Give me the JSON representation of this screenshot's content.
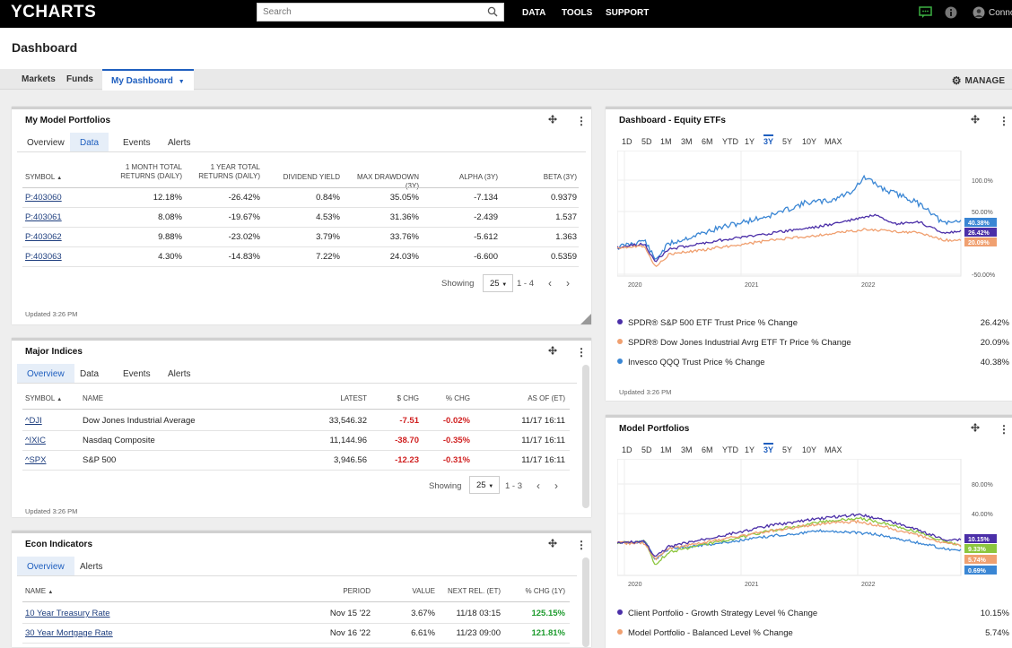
{
  "topbar": {
    "logo": "YCHARTS",
    "search_placeholder": "Search",
    "nav": [
      "DATA",
      "TOOLS",
      "SUPPORT"
    ],
    "user": "Conno"
  },
  "dashboard": {
    "title": "Dashboard",
    "tabs": [
      "Markets",
      "Funds"
    ],
    "active_tab": "My Dashboard",
    "manage": "MANAGE"
  },
  "model_portfolios": {
    "title": "My Model Portfolios",
    "tabs": [
      "Overview",
      "Data",
      "Events",
      "Alerts"
    ],
    "headers": [
      "SYMBOL",
      "1 MONTH TOTAL",
      "RETURNS (DAILY)",
      "1 YEAR TOTAL",
      "RETURNS (DAILY)",
      "DIVIDEND YIELD",
      "MAX DRAWDOWN (3Y)",
      "ALPHA (3Y)",
      "BETA (3Y)"
    ],
    "rows": [
      [
        "P:403060",
        "12.18%",
        "-26.42%",
        "0.84%",
        "35.05%",
        "-7.134",
        "0.9379"
      ],
      [
        "P:403061",
        "8.08%",
        "-19.67%",
        "4.53%",
        "31.36%",
        "-2.439",
        "1.537"
      ],
      [
        "P:403062",
        "9.88%",
        "-23.02%",
        "3.79%",
        "33.76%",
        "-5.612",
        "1.363"
      ],
      [
        "P:403063",
        "4.30%",
        "-14.83%",
        "7.22%",
        "24.03%",
        "-6.600",
        "0.5359"
      ]
    ],
    "showing": "Showing",
    "per_page": "25",
    "range": "1 - 4",
    "updated": "Updated 3:26 PM"
  },
  "major_indices": {
    "title": "Major Indices",
    "tabs": [
      "Overview",
      "Data",
      "Events",
      "Alerts"
    ],
    "headers": [
      "SYMBOL",
      "NAME",
      "LATEST",
      "$ CHG",
      "% CHG",
      "AS OF (ET)"
    ],
    "rows": [
      [
        "^DJI",
        "Dow Jones Industrial Average",
        "33,546.32",
        "-7.51",
        "-0.02%",
        "11/17 16:11"
      ],
      [
        "^IXIC",
        "Nasdaq Composite",
        "11,144.96",
        "-38.70",
        "-0.35%",
        "11/17 16:11"
      ],
      [
        "^SPX",
        "S&P 500",
        "3,946.56",
        "-12.23",
        "-0.31%",
        "11/17 16:11"
      ]
    ],
    "showing": "Showing",
    "per_page": "25",
    "range": "1 - 3",
    "updated": "Updated 3:26 PM"
  },
  "econ": {
    "title": "Econ Indicators",
    "tabs": [
      "Overview",
      "Alerts"
    ],
    "headers": [
      "NAME",
      "PERIOD",
      "VALUE",
      "NEXT REL. (ET)",
      "% CHG (1Y)"
    ],
    "rows": [
      [
        "10 Year Treasury Rate",
        "Nov 15 '22",
        "3.67%",
        "11/18 03:15",
        "125.15%"
      ],
      [
        "30 Year Mortgage Rate",
        "Nov 16 '22",
        "6.61%",
        "11/23 09:00",
        "121.81%"
      ]
    ]
  },
  "equity_etfs": {
    "title": "Dashboard - Equity ETFs",
    "ranges": [
      "1D",
      "5D",
      "1M",
      "3M",
      "6M",
      "YTD",
      "1Y",
      "3Y",
      "5Y",
      "10Y",
      "MAX"
    ],
    "active_range": "3Y",
    "legend": [
      {
        "label": "SPDR® S&P 500 ETF Trust Price % Change",
        "value": "26.42%",
        "color": "#4b2fa8"
      },
      {
        "label": "SPDR® Dow Jones Industrial Avrg ETF Tr Price % Change",
        "value": "20.09%",
        "color": "#f0a070"
      },
      {
        "label": "Invesco QQQ Trust Price % Change",
        "value": "40.38%",
        "color": "#3a86d4"
      }
    ],
    "updated": "Updated 3:26 PM"
  },
  "model_portfolios_chart": {
    "title": "Model Portfolios",
    "ranges": [
      "1D",
      "5D",
      "1M",
      "3M",
      "6M",
      "YTD",
      "1Y",
      "3Y",
      "5Y",
      "10Y",
      "MAX"
    ],
    "active_range": "3Y",
    "legend": [
      {
        "label": "Client Portfolio - Growth Strategy Level % Change",
        "value": "10.15%",
        "color": "#4b2fa8"
      },
      {
        "label": "Model Portfolio - Balanced Level % Change",
        "value": "5.74%",
        "color": "#f0a070"
      }
    ]
  },
  "chart_data": [
    {
      "type": "line",
      "title": "Dashboard - Equity ETFs",
      "x": [
        "2020",
        "2021",
        "2022"
      ],
      "y_ticks": [
        "100.0%",
        "50.00%",
        "-50.00%"
      ],
      "series": [
        {
          "name": "SPDR® S&P 500 ETF Trust Price % Change",
          "color": "#4b2fa8",
          "end_value": "26.42%"
        },
        {
          "name": "SPDR® Dow Jones Industrial Avrg ETF Tr Price % Change",
          "color": "#f0a070",
          "end_value": "20.09%"
        },
        {
          "name": "Invesco QQQ Trust Price % Change",
          "color": "#3a86d4",
          "end_value": "40.38%"
        }
      ]
    },
    {
      "type": "line",
      "title": "Model Portfolios",
      "x": [
        "2020",
        "2021",
        "2022"
      ],
      "y_ticks": [
        "80.00%",
        "40.00%"
      ],
      "series": [
        {
          "name": "Client Portfolio - Growth Strategy Level % Change",
          "color": "#4b2fa8",
          "end_value": "10.15%"
        },
        {
          "color": "#8cc63e",
          "end_value": "9.33%"
        },
        {
          "name": "Model Portfolio - Balanced Level % Change",
          "color": "#f0a070",
          "end_value": "5.74%"
        },
        {
          "color": "#3a86d4",
          "end_value": "0.69%"
        }
      ]
    }
  ]
}
